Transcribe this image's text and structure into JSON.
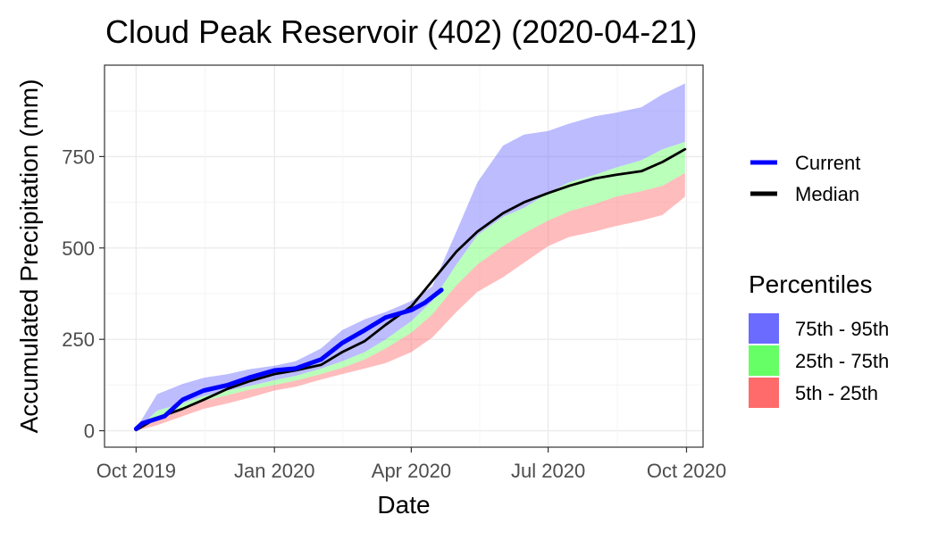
{
  "chart_data": {
    "type": "area",
    "title": "Cloud Peak Reservoir (402) (2020-04-21)",
    "xlabel": "Date",
    "ylabel": "Accumulated Precipitation (mm)",
    "xlim": [
      "2019-09-10",
      "2020-10-12"
    ],
    "ylim": [
      -45,
      1000
    ],
    "grid": true,
    "x_ticks": [
      {
        "date": "2019-10-01",
        "label": "Oct 2019"
      },
      {
        "date": "2020-01-01",
        "label": "Jan 2020"
      },
      {
        "date": "2020-04-01",
        "label": "Apr 2020"
      },
      {
        "date": "2020-07-01",
        "label": "Jul 2020"
      },
      {
        "date": "2020-10-01",
        "label": "Oct 2020"
      }
    ],
    "y_ticks": [
      0,
      250,
      500,
      750
    ],
    "x": [
      "2019-10-01",
      "2019-10-15",
      "2019-11-01",
      "2019-11-15",
      "2019-12-01",
      "2019-12-15",
      "2020-01-01",
      "2020-01-15",
      "2020-02-01",
      "2020-02-15",
      "2020-03-01",
      "2020-03-15",
      "2020-04-01",
      "2020-04-15",
      "2020-05-01",
      "2020-05-15",
      "2020-06-01",
      "2020-06-15",
      "2020-07-01",
      "2020-07-15",
      "2020-08-01",
      "2020-08-15",
      "2020-09-01",
      "2020-09-15",
      "2020-09-30"
    ],
    "bands": [
      {
        "name": "75th - 95th",
        "color": "#6b6bff",
        "lower": [
          2,
          55,
          75,
          95,
          110,
          122,
          138,
          150,
          170,
          190,
          215,
          250,
          300,
          355,
          455,
          535,
          585,
          610,
          650,
          680,
          700,
          720,
          740,
          770,
          790
        ],
        "upper": [
          5,
          100,
          128,
          145,
          155,
          168,
          178,
          190,
          225,
          275,
          305,
          325,
          355,
          395,
          545,
          680,
          780,
          810,
          820,
          840,
          860,
          870,
          885,
          920,
          950
        ]
      },
      {
        "name": "25th - 75th",
        "color": "#66ff66",
        "lower": [
          0,
          40,
          62,
          82,
          97,
          112,
          125,
          137,
          155,
          172,
          195,
          225,
          268,
          318,
          398,
          455,
          505,
          540,
          575,
          600,
          620,
          640,
          655,
          670,
          705
        ],
        "upper": [
          2,
          55,
          75,
          95,
          110,
          122,
          138,
          150,
          170,
          190,
          215,
          250,
          300,
          355,
          455,
          535,
          585,
          610,
          650,
          680,
          700,
          720,
          740,
          770,
          790
        ]
      },
      {
        "name": "5th - 25th",
        "color": "#ff6b6b",
        "lower": [
          0,
          15,
          40,
          60,
          75,
          90,
          110,
          120,
          140,
          155,
          170,
          185,
          215,
          255,
          325,
          380,
          420,
          460,
          505,
          530,
          545,
          560,
          575,
          590,
          640
        ],
        "upper": [
          0,
          40,
          62,
          82,
          97,
          112,
          125,
          137,
          155,
          172,
          195,
          225,
          268,
          318,
          398,
          455,
          505,
          540,
          575,
          600,
          620,
          640,
          655,
          670,
          705
        ]
      }
    ],
    "series": [
      {
        "name": "Current",
        "color": "#0000ff",
        "x": [
          "2019-10-01",
          "2019-10-05",
          "2019-10-20",
          "2019-11-01",
          "2019-11-15",
          "2019-12-01",
          "2019-12-15",
          "2020-01-01",
          "2020-01-15",
          "2020-02-01",
          "2020-02-15",
          "2020-03-01",
          "2020-03-15",
          "2020-04-01",
          "2020-04-10",
          "2020-04-21"
        ],
        "values": [
          5,
          20,
          40,
          85,
          110,
          125,
          145,
          165,
          170,
          195,
          240,
          275,
          310,
          330,
          350,
          385
        ]
      },
      {
        "name": "Median",
        "color": "#000000",
        "x": [
          "2019-10-01",
          "2019-10-15",
          "2019-11-01",
          "2019-11-15",
          "2019-12-01",
          "2019-12-15",
          "2020-01-01",
          "2020-01-15",
          "2020-02-01",
          "2020-02-15",
          "2020-03-01",
          "2020-03-15",
          "2020-04-01",
          "2020-04-15",
          "2020-05-01",
          "2020-05-15",
          "2020-06-01",
          "2020-06-15",
          "2020-07-01",
          "2020-07-15",
          "2020-08-01",
          "2020-08-15",
          "2020-09-01",
          "2020-09-15",
          "2020-09-30"
        ],
        "values": [
          2,
          35,
          60,
          85,
          115,
          135,
          155,
          165,
          180,
          215,
          245,
          290,
          340,
          410,
          490,
          545,
          595,
          625,
          650,
          670,
          690,
          700,
          710,
          735,
          770
        ]
      }
    ],
    "legend": {
      "placement": "right",
      "series_entries": [
        {
          "label": "Current",
          "color": "#0000ff"
        },
        {
          "label": "Median",
          "color": "#000000"
        }
      ],
      "percentiles_title": "Percentiles",
      "percentile_entries": [
        {
          "label": "75th - 95th",
          "color": "#6b6bff"
        },
        {
          "label": "25th - 75th",
          "color": "#66ff66"
        },
        {
          "label": "5th - 25th",
          "color": "#ff6b6b"
        }
      ]
    }
  }
}
